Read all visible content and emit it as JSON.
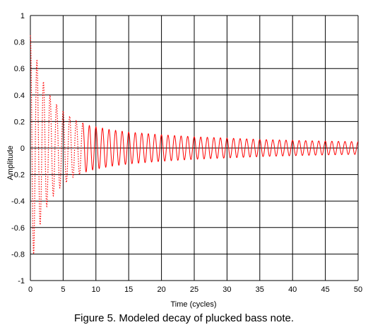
{
  "chart_data": {
    "type": "line",
    "title": "",
    "caption": "Figure 5. Modeled decay of plucked bass note.",
    "xlabel": "Time (cycles)",
    "ylabel": "Amplitude",
    "xlim": [
      0,
      50
    ],
    "ylim": [
      -1,
      1
    ],
    "x_ticks": [
      0,
      5,
      10,
      15,
      20,
      25,
      30,
      35,
      40,
      45,
      50
    ],
    "x_tick_labels": [
      "0",
      "5",
      "10",
      "15",
      "20",
      "25",
      "30",
      "35",
      "40",
      "45",
      "50"
    ],
    "y_ticks": [
      -1,
      -0.8,
      -0.6,
      -0.4,
      -0.2,
      0,
      0.2,
      0.4,
      0.6,
      0.8,
      1
    ],
    "y_tick_labels": [
      "-1",
      "-0.8",
      "-0.6",
      "-0.4",
      "-0.2",
      "0",
      "0.2",
      "0.4",
      "0.6",
      "0.8",
      "1"
    ],
    "grid": true,
    "line_color": "#ff0000",
    "series": [
      {
        "name": "",
        "style": "dotted-to-solid",
        "x": [
          0,
          0.5,
          1,
          1.5,
          2,
          2.5,
          3,
          3.5,
          4,
          4.5,
          5,
          5.5,
          6,
          6.5,
          7,
          7.5,
          8,
          9,
          10,
          12,
          15,
          20,
          25,
          30,
          35,
          40,
          45,
          50
        ],
        "envelope": [
          0.85,
          0.8,
          0.66,
          0.58,
          0.5,
          0.44,
          0.4,
          0.36,
          0.33,
          0.3,
          0.28,
          0.26,
          0.24,
          0.22,
          0.21,
          0.2,
          0.19,
          0.17,
          0.16,
          0.14,
          0.12,
          0.1,
          0.085,
          0.075,
          0.065,
          0.058,
          0.052,
          0.048
        ]
      }
    ]
  }
}
